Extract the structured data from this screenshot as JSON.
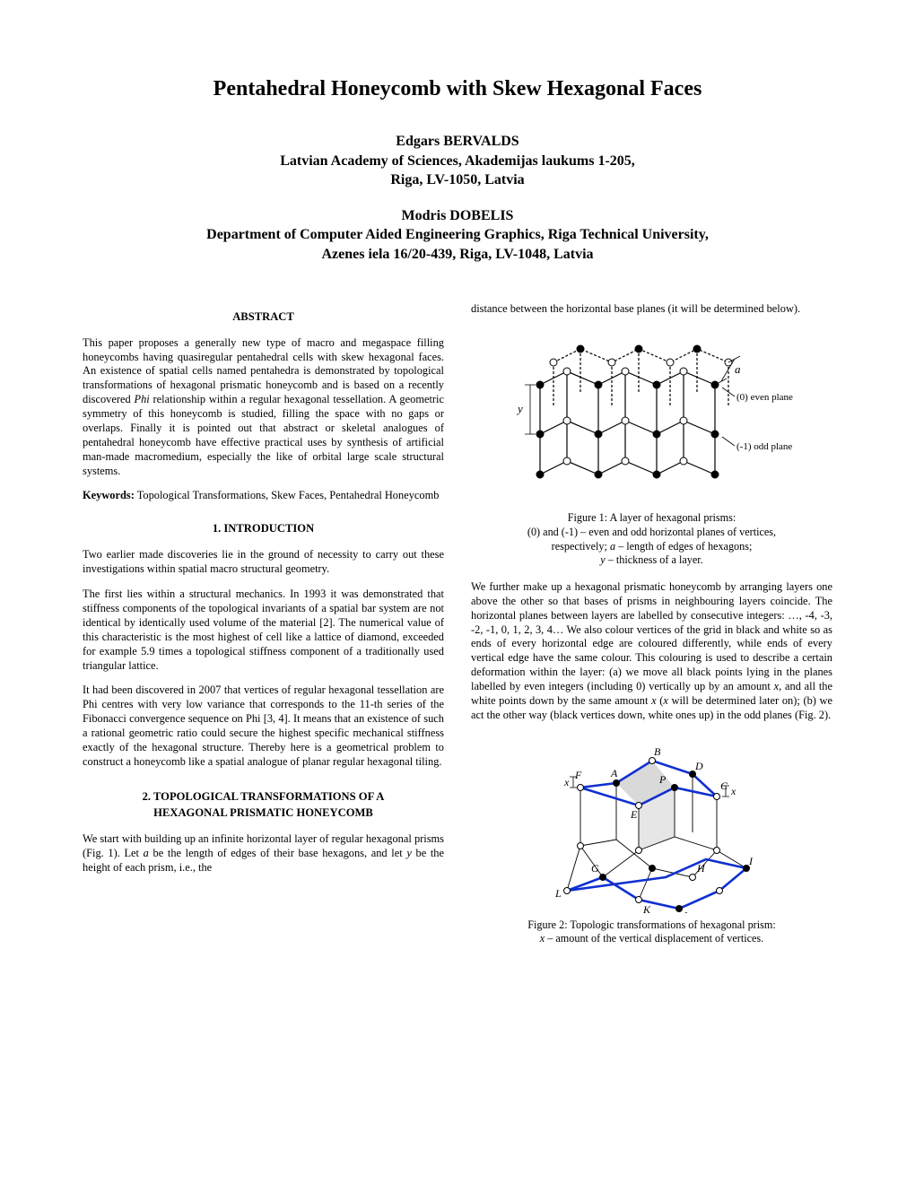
{
  "title": "Pentahedral Honeycomb with Skew Hexagonal Faces",
  "author1": {
    "name": "Edgars BERVALDS",
    "affil1": "Latvian Academy of Sciences, Akademijas laukums 1-205,",
    "affil2": "Riga, LV-1050, Latvia"
  },
  "author2": {
    "name": "Modris DOBELIS",
    "affil1": "Department of Computer Aided Engineering Graphics, Riga Technical University,",
    "affil2": "Azenes iela 16/20-439, Riga, LV-1048, Latvia"
  },
  "abstract_heading": "ABSTRACT",
  "abstract": "This paper proposes a generally new type of macro and megaspace filling honeycombs having quasiregular pentahedral cells with skew hexagonal faces. An existence of spatial cells named pentahedra is demonstrated by topological transformations of hexagonal prismatic honeycomb and is based on a recently discovered Phi relationship within a regular hexagonal tessellation. A geometric symmetry of this honeycomb is studied, filling the space with no gaps or overlaps. Finally it is pointed out that abstract or skeletal analogues of pentahedral honeycomb have effective practical uses by synthesis of artificial man-made macromedium, especially the like of orbital large scale structural systems.",
  "keywords_label": "Keywords:",
  "keywords": " Topological Transformations, Skew Faces, Pentahedral Honeycomb",
  "intro_heading": "1.  INTRODUCTION",
  "intro_p1": "Two earlier made discoveries lie in the ground of necessity to carry out these investigations within spatial macro structural geometry.",
  "intro_p2": "The first lies within a structural mechanics. In 1993 it was demonstrated that stiffness components of the topological invariants of a spatial bar system are not identical by identically used volume of the material [2]. The numerical value of this characteristic is the most highest of cell like a lattice of diamond, exceeded for example 5.9 times a topological stiffness component of a traditionally used triangular lattice.",
  "intro_p3": "It had been discovered in 2007 that vertices of regular hexagonal tessellation are Phi centres with very low variance that corresponds to the 11-th series of the Fibonacci convergence sequence on Phi [3, 4]. It means that an existence of such a rational geometric ratio could secure the highest specific mechanical stiffness exactly of the hexagonal structure. Thereby here is a geometrical problem to construct a honeycomb like a spatial analogue of planar regular hexagonal tiling.",
  "sec2_heading_l1": "2.  TOPOLOGICAL TRANSFORMATIONS OF A",
  "sec2_heading_l2": "HEXAGONAL PRISMATIC HONEYCOMB",
  "sec2_p1_a": "We start with building up an infinite horizontal layer of regular hexagonal prisms (Fig. 1). Let ",
  "sec2_p1_b": " be the length of edges of their base hexagons, and let ",
  "sec2_p1_c": " be the height of each prism, i.e., the",
  "col2_top": "distance between the horizontal base planes (it will be determined below).",
  "fig1_caption_l1": "Figure 1: A layer of hexagonal prisms:",
  "fig1_caption_l2a": "(0) and (-1) – even and odd horizontal planes of vertices,",
  "fig1_caption_l3a": "respectively; ",
  "fig1_caption_l3b": " – length of edges of hexagons;",
  "fig1_caption_l4a": "y",
  "fig1_caption_l4b": " – thickness of a layer.",
  "col2_p2_a": "We further make up a hexagonal prismatic honeycomb by arranging layers one above the other so that bases of prisms in neighbouring layers coincide. The horizontal planes between layers are labelled by consecutive integers: …, -4, -3, -2, -1, 0, 1, 2, 3, 4… We also colour vertices of the grid in black and white so as ends of every horizontal edge are coloured differently, while ends of every vertical edge have the same colour. This colouring is used to describe a certain deformation within the layer: (a) we move all black points lying in the planes labelled by even integers (including 0) vertically up by an amount ",
  "col2_p2_b": ", and all the white points down by the same amount ",
  "col2_p2_c": " (",
  "col2_p2_d": " will be determined later on); (b) we act the other way (black vertices down, white ones up) in the odd planes (Fig. 2).",
  "fig2_caption_l1": "Figure 2: Topologic transformations of hexagonal prism:",
  "fig2_caption_l2a": "x",
  "fig2_caption_l2b": " – amount of the vertical displacement of vertices.",
  "var_a": "a",
  "var_y": "y",
  "var_x": "x",
  "fig1": {
    "labels": {
      "a": "a",
      "y": "y",
      "even": "(0) even plane",
      "odd": "(-1) odd plane"
    },
    "colors": {
      "edge": "#000000",
      "dash": "#000000",
      "fillBlack": "#000000",
      "fillWhite": "#ffffff"
    }
  },
  "fig2": {
    "labels": {
      "A": "A",
      "B": "B",
      "C": "C",
      "D": "D",
      "E": "E",
      "F": "F",
      "G": "G",
      "H": "H",
      "I": "I",
      "J": "J",
      "K": "K",
      "L": "L",
      "P": "P",
      "x": "x"
    },
    "colors": {
      "blue": "#1030d0",
      "thin": "#000000",
      "shade": "#d9d9d9"
    }
  }
}
